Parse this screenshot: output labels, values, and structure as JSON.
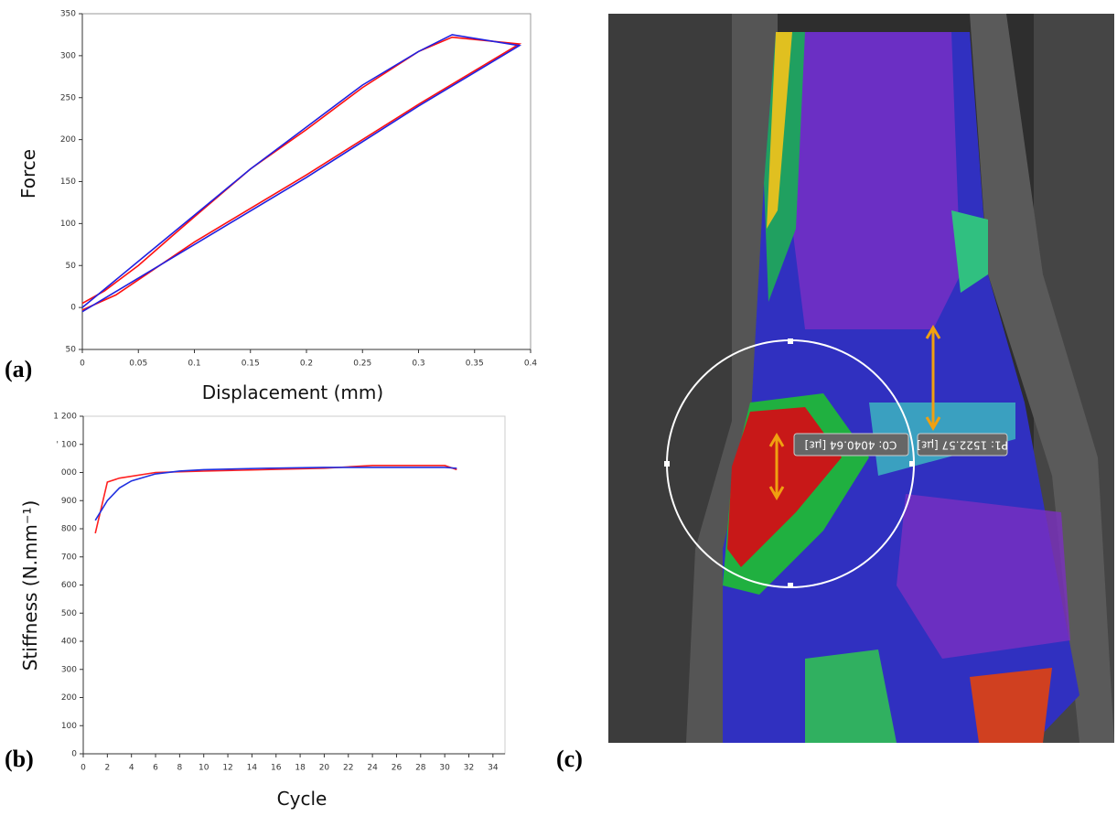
{
  "chart_data": [
    {
      "type": "line",
      "panel_label": "(a)",
      "xlabel": "Displacement (mm)",
      "ylabel": "Force",
      "xlim": [
        0,
        0.4
      ],
      "ylim": [
        -50,
        350
      ],
      "xticks": [
        0,
        0.05,
        0.1,
        0.15,
        0.2,
        0.25,
        0.3,
        0.35,
        0.4
      ],
      "yticks": [
        {
          "value": -50,
          "label": "50"
        },
        0,
        50,
        100,
        150,
        200,
        250,
        300,
        350
      ],
      "series": [
        {
          "color": "#ff1010",
          "x": [
            0,
            0.02,
            0.05,
            0.08,
            0.1,
            0.15,
            0.2,
            0.25,
            0.3,
            0.33,
            0.39,
            0.3,
            0.2,
            0.1,
            0.03,
            0
          ],
          "values": [
            5,
            20,
            50,
            85,
            108,
            165,
            212,
            262,
            305,
            322,
            314,
            242,
            158,
            78,
            15,
            -3
          ]
        },
        {
          "color": "#2020e0",
          "x": [
            0,
            0.05,
            0.1,
            0.15,
            0.2,
            0.25,
            0.3,
            0.33,
            0.39,
            0.3,
            0.2,
            0.1,
            0
          ],
          "values": [
            0,
            55,
            110,
            165,
            215,
            265,
            305,
            325,
            312,
            240,
            155,
            75,
            -5
          ]
        }
      ]
    },
    {
      "type": "line",
      "panel_label": "(b)",
      "xlabel": "Cycle",
      "ylabel": "Stiffness (N.mm⁻¹)",
      "xlim": [
        0,
        35
      ],
      "ylim": [
        0,
        1200
      ],
      "xticks": [
        0,
        2,
        4,
        6,
        8,
        10,
        12,
        14,
        16,
        18,
        20,
        22,
        24,
        26,
        28,
        30,
        32,
        34
      ],
      "yticks": [
        0,
        100,
        200,
        300,
        400,
        500,
        600,
        700,
        800,
        900,
        {
          "value": 1000,
          "label": "000"
        },
        {
          "value": 1100,
          "label": "' 100"
        },
        {
          "value": 1200,
          "label": "1 200"
        }
      ],
      "series": [
        {
          "color": "#ff2020",
          "x": [
            1,
            2,
            3,
            6,
            10,
            20,
            24,
            30,
            31
          ],
          "values": [
            784,
            966,
            980,
            1000,
            1005,
            1015,
            1025,
            1025,
            1010
          ]
        },
        {
          "color": "#2030e0",
          "x": [
            1,
            2,
            3,
            4,
            6,
            8,
            10,
            15,
            20,
            25,
            30,
            31
          ],
          "values": [
            830,
            900,
            945,
            970,
            995,
            1005,
            1010,
            1015,
            1018,
            1018,
            1018,
            1015
          ]
        }
      ]
    }
  ],
  "image": {
    "panel_label": "(c)",
    "annotations": [
      "C0: 4040.64 [µε]",
      "P1: 1522.57 [µε]"
    ]
  }
}
